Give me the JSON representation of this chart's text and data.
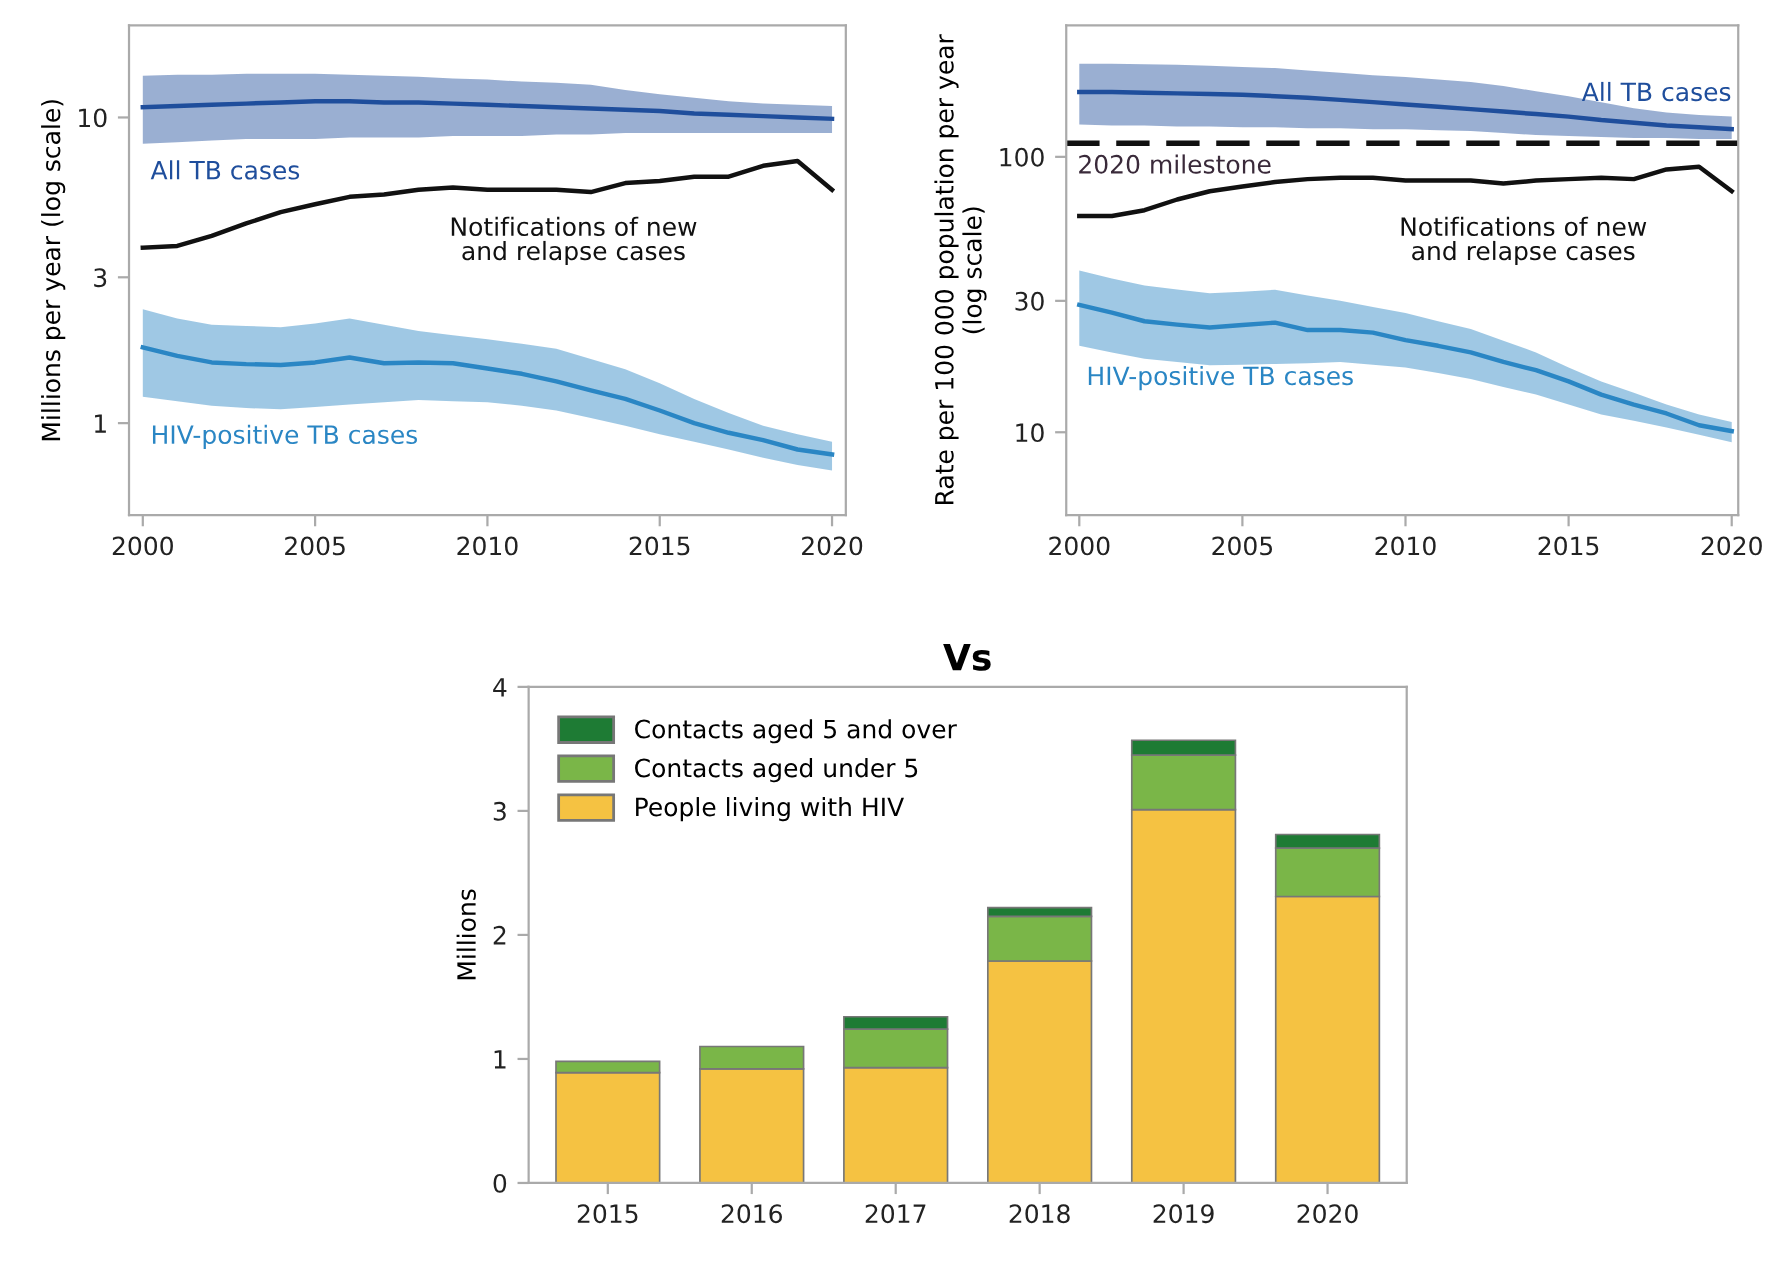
{
  "chart_data": [
    {
      "type": "line",
      "ylabel": "Millions per year (log scale)",
      "log": "y",
      "xlim": [
        1999.6,
        2020.4
      ],
      "ylim": [
        0.5,
        20
      ],
      "xticks": [
        2000,
        2005,
        2010,
        2015,
        2020
      ],
      "yticks": [
        1,
        3,
        10
      ],
      "grid": false,
      "legend": false,
      "x": [
        2000,
        2001,
        2002,
        2003,
        2004,
        2005,
        2006,
        2007,
        2008,
        2009,
        2010,
        2011,
        2012,
        2013,
        2014,
        2015,
        2016,
        2017,
        2018,
        2019,
        2020
      ],
      "series": [
        {
          "name": "All TB cases",
          "color": "#1f4e9c",
          "values": [
            10.8,
            10.9,
            11.0,
            11.1,
            11.2,
            11.3,
            11.3,
            11.2,
            11.2,
            11.1,
            11.0,
            10.9,
            10.8,
            10.7,
            10.6,
            10.5,
            10.3,
            10.2,
            10.1,
            10.0,
            9.9
          ],
          "lower": [
            8.2,
            8.3,
            8.4,
            8.5,
            8.5,
            8.5,
            8.6,
            8.6,
            8.6,
            8.7,
            8.7,
            8.7,
            8.8,
            8.8,
            8.9,
            8.9,
            8.9,
            8.9,
            8.9,
            8.9,
            8.9
          ],
          "upper": [
            13.7,
            13.8,
            13.8,
            13.9,
            13.9,
            13.9,
            13.8,
            13.7,
            13.6,
            13.4,
            13.3,
            13.1,
            13.0,
            12.8,
            12.3,
            11.9,
            11.6,
            11.3,
            11.1,
            11.0,
            10.9
          ]
        },
        {
          "name": "Notifications of new\nand relapse cases",
          "color": "#111111",
          "values": [
            3.75,
            3.8,
            4.1,
            4.5,
            4.9,
            5.2,
            5.5,
            5.6,
            5.8,
            5.9,
            5.8,
            5.8,
            5.8,
            5.7,
            6.1,
            6.2,
            6.4,
            6.4,
            6.95,
            7.2,
            5.8
          ]
        },
        {
          "name": "HIV-positive TB cases",
          "color": "#2a86c4",
          "values": [
            1.77,
            1.66,
            1.58,
            1.56,
            1.55,
            1.58,
            1.64,
            1.57,
            1.58,
            1.57,
            1.51,
            1.45,
            1.37,
            1.28,
            1.2,
            1.1,
            1.0,
            0.93,
            0.88,
            0.82,
            0.79
          ],
          "lower": [
            1.22,
            1.18,
            1.14,
            1.12,
            1.11,
            1.13,
            1.15,
            1.17,
            1.19,
            1.18,
            1.17,
            1.14,
            1.1,
            1.04,
            0.98,
            0.92,
            0.87,
            0.82,
            0.77,
            0.73,
            0.7
          ],
          "upper": [
            2.36,
            2.2,
            2.1,
            2.08,
            2.06,
            2.12,
            2.2,
            2.1,
            2.0,
            1.94,
            1.88,
            1.82,
            1.75,
            1.62,
            1.5,
            1.35,
            1.2,
            1.08,
            0.98,
            0.92,
            0.87
          ]
        }
      ]
    },
    {
      "type": "line",
      "ylabel": "Rate per 100 000 population per year\n(log scale)",
      "log": "y",
      "xlim": [
        1999.6,
        2020.2
      ],
      "ylim": [
        5,
        300
      ],
      "xticks": [
        2000,
        2005,
        2010,
        2015,
        2020
      ],
      "yticks": [
        10,
        30,
        100
      ],
      "grid": false,
      "legend": false,
      "x": [
        2000,
        2001,
        2002,
        2003,
        2004,
        2005,
        2006,
        2007,
        2008,
        2009,
        2010,
        2011,
        2012,
        2013,
        2014,
        2015,
        2016,
        2017,
        2018,
        2019,
        2020
      ],
      "series": [
        {
          "name": "All TB cases",
          "color": "#1f4e9c",
          "values": [
            172,
            172,
            171,
            170,
            169,
            168,
            166,
            164,
            161,
            158,
            155,
            152,
            149,
            146,
            143,
            140,
            136,
            133,
            130,
            128,
            126
          ],
          "lower": [
            131,
            130,
            130,
            129,
            129,
            128,
            128,
            127,
            127,
            126,
            126,
            125,
            124,
            122,
            120,
            119,
            118,
            117,
            117,
            116,
            116
          ],
          "upper": [
            218,
            218,
            217,
            216,
            214,
            212,
            210,
            206,
            202,
            198,
            195,
            191,
            187,
            181,
            173,
            166,
            158,
            150,
            145,
            142,
            140
          ]
        },
        {
          "name": "Notifications of new\nand relapse cases",
          "color": "#111111",
          "values": [
            61,
            61,
            64,
            70,
            75,
            78,
            81,
            83,
            84,
            84,
            82,
            82,
            82,
            80,
            82,
            83,
            84,
            83,
            90,
            92,
            75
          ]
        },
        {
          "name": "HIV-positive TB cases",
          "color": "#2a86c4",
          "values": [
            29,
            27.2,
            25.3,
            24.6,
            24.0,
            24.5,
            25,
            23.5,
            23.5,
            23.0,
            21.6,
            20.6,
            19.5,
            18.0,
            16.8,
            15.3,
            13.7,
            12.6,
            11.7,
            10.6,
            10.1
          ],
          "lower": [
            20.6,
            19.5,
            18.5,
            18.0,
            17.5,
            17.6,
            17.7,
            17.8,
            18,
            17.6,
            17.2,
            16.4,
            15.6,
            14.6,
            13.7,
            12.6,
            11.6,
            11.0,
            10.4,
            9.8,
            9.2
          ],
          "upper": [
            38.7,
            36.2,
            34.1,
            33.0,
            32,
            32.4,
            32.9,
            31.4,
            30,
            28.5,
            27.1,
            25.3,
            23.7,
            21.5,
            19.5,
            17.2,
            15.3,
            13.9,
            12.6,
            11.6,
            10.9
          ]
        }
      ],
      "ref_lines": [
        {
          "axis": "y",
          "value": 112,
          "label": "2020 milestone",
          "color": "#111111",
          "line_style": "dashed"
        }
      ]
    },
    {
      "type": "bar",
      "title": "Vs",
      "ylabel": "Millions",
      "stacked": true,
      "ylim": [
        0,
        4
      ],
      "yticks": [
        0,
        1,
        2,
        3,
        4
      ],
      "grid": false,
      "legend": "top left",
      "categories": [
        "2015",
        "2016",
        "2017",
        "2018",
        "2019",
        "2020"
      ],
      "series": [
        {
          "name": "People living with HIV",
          "color": "#f5c242",
          "values": [
            0.89,
            0.92,
            0.93,
            1.79,
            3.01,
            2.31
          ]
        },
        {
          "name": "Contacts aged under 5",
          "color": "#7ab648",
          "values": [
            0.09,
            0.18,
            0.31,
            0.36,
            0.44,
            0.39
          ]
        },
        {
          "name": "Contacts aged 5 and over",
          "color": "#1e7b34",
          "values": [
            0,
            0,
            0.1,
            0.07,
            0.12,
            0.11
          ]
        }
      ]
    }
  ]
}
